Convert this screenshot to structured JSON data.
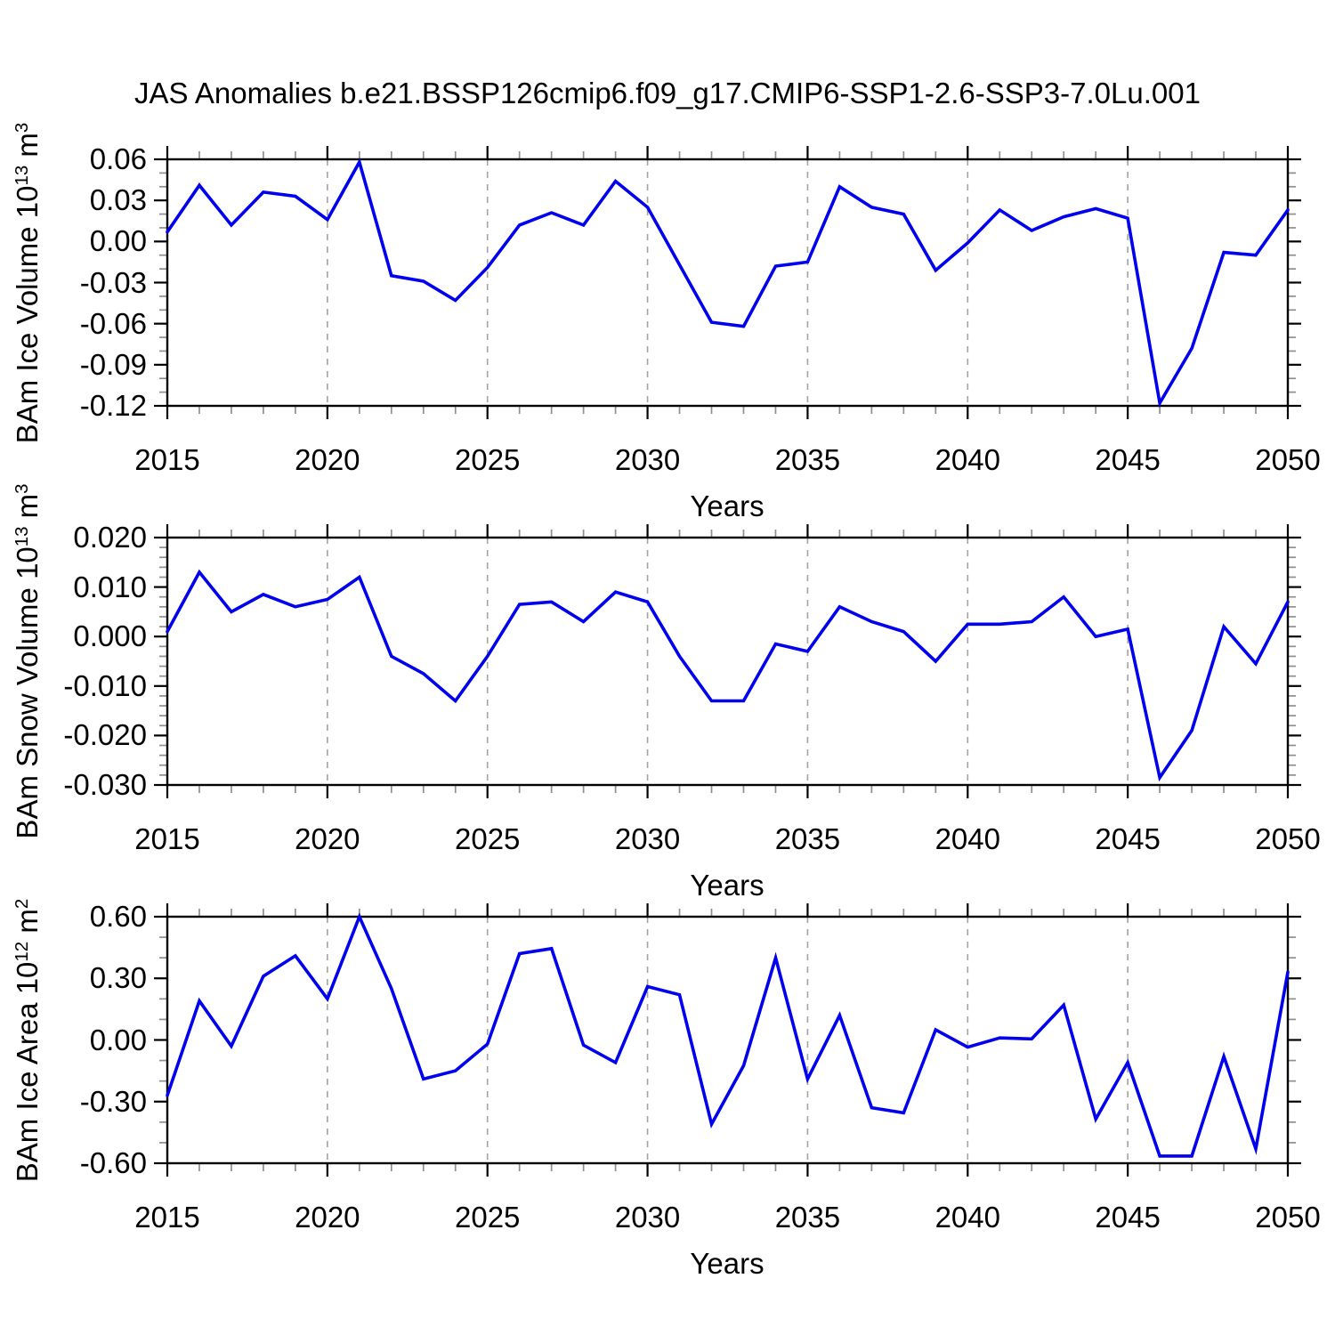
{
  "title": "JAS Anomalies b.e21.BSSP126cmip6.f09_g17.CMIP6-SSP1-2.6-SSP3-7.0Lu.001",
  "xlabel": "Years",
  "line_color": "#0000EE",
  "grid_color": "#A3A3A3",
  "frame_color": "#000000",
  "minor_tick_color": "#8F8F8F",
  "chart_data": [
    {
      "type": "line",
      "name": "ice-volume",
      "ylabel_text": "BAm Ice Volume 10^13 m^3",
      "ylabel_parts": [
        {
          "text": "BAm Ice Volume 10"
        },
        {
          "text": "13",
          "sup": true
        },
        {
          "text": " m"
        },
        {
          "text": "3",
          "sup": true
        }
      ],
      "xlabel": "Years",
      "x": [
        2015,
        2016,
        2017,
        2018,
        2019,
        2020,
        2021,
        2022,
        2023,
        2024,
        2025,
        2026,
        2027,
        2028,
        2029,
        2030,
        2031,
        2032,
        2033,
        2034,
        2035,
        2036,
        2037,
        2038,
        2039,
        2040,
        2041,
        2042,
        2043,
        2044,
        2045,
        2046,
        2047,
        2048,
        2049,
        2050
      ],
      "values": [
        0.007,
        0.041,
        0.012,
        0.036,
        0.033,
        0.016,
        0.058,
        -0.025,
        -0.029,
        -0.043,
        -0.019,
        0.012,
        0.021,
        0.012,
        0.044,
        0.025,
        -0.017,
        -0.059,
        -0.062,
        -0.018,
        -0.015,
        0.04,
        0.025,
        0.02,
        -0.021,
        -0.001,
        0.023,
        0.008,
        0.018,
        0.024,
        0.017,
        -0.118,
        -0.078,
        -0.008,
        -0.01,
        0.023
      ],
      "ylim": [
        -0.12,
        0.06
      ],
      "ytick_values": [
        0.06,
        0.03,
        0.0,
        -0.03,
        -0.06,
        -0.09,
        -0.12
      ],
      "ytick_labels": [
        "0.06",
        "0.03",
        "0.00",
        "-0.03",
        "-0.06",
        "-0.09",
        "-0.12"
      ],
      "y_minor_step": 0.01,
      "xlim": [
        2015,
        2050
      ],
      "x_major_ticks": [
        2015,
        2020,
        2025,
        2030,
        2035,
        2040,
        2045,
        2050
      ],
      "x_tick_labels": [
        "2015",
        "2020",
        "2025",
        "2030",
        "2035",
        "2040",
        "2045",
        "2050"
      ],
      "x_minor_step": 1,
      "grid_years": [
        2020,
        2025,
        2030,
        2035,
        2040,
        2045
      ],
      "grid_on": "vertical-dashed",
      "legend": "none"
    },
    {
      "type": "line",
      "name": "snow-volume",
      "ylabel_text": "BAm Snow Volume 10^13 m^3",
      "ylabel_parts": [
        {
          "text": "BAm Snow Volume 10"
        },
        {
          "text": "13",
          "sup": true
        },
        {
          "text": " m"
        },
        {
          "text": "3",
          "sup": true
        }
      ],
      "xlabel": "Years",
      "x": [
        2015,
        2016,
        2017,
        2018,
        2019,
        2020,
        2021,
        2022,
        2023,
        2024,
        2025,
        2026,
        2027,
        2028,
        2029,
        2030,
        2031,
        2032,
        2033,
        2034,
        2035,
        2036,
        2037,
        2038,
        2039,
        2040,
        2041,
        2042,
        2043,
        2044,
        2045,
        2046,
        2047,
        2048,
        2049,
        2050
      ],
      "values": [
        0.001,
        0.013,
        0.005,
        0.0085,
        0.006,
        0.0075,
        0.012,
        -0.004,
        -0.0075,
        -0.013,
        -0.004,
        0.0065,
        0.007,
        0.003,
        0.009,
        0.007,
        -0.004,
        -0.013,
        -0.013,
        -0.0015,
        -0.003,
        0.006,
        0.003,
        0.001,
        -0.005,
        0.0025,
        0.0025,
        0.003,
        0.008,
        0.0,
        0.0015,
        -0.0285,
        -0.019,
        0.002,
        -0.0055,
        0.007
      ],
      "ylim": [
        -0.03,
        0.02
      ],
      "ytick_values": [
        0.02,
        0.01,
        0.0,
        -0.01,
        -0.02,
        -0.03
      ],
      "ytick_labels": [
        "0.020",
        "0.010",
        "0.000",
        "-0.010",
        "-0.020",
        "-0.030"
      ],
      "y_minor_step": 0.002,
      "xlim": [
        2015,
        2050
      ],
      "x_major_ticks": [
        2015,
        2020,
        2025,
        2030,
        2035,
        2040,
        2045,
        2050
      ],
      "x_tick_labels": [
        "2015",
        "2020",
        "2025",
        "2030",
        "2035",
        "2040",
        "2045",
        "2050"
      ],
      "x_minor_step": 1,
      "grid_years": [
        2020,
        2025,
        2030,
        2035,
        2040,
        2045
      ],
      "grid_on": "vertical-dashed",
      "legend": "none"
    },
    {
      "type": "line",
      "name": "ice-area",
      "ylabel_text": "BAm Ice Area 10^12 m^2",
      "ylabel_parts": [
        {
          "text": "BAm Ice Area 10"
        },
        {
          "text": "12",
          "sup": true
        },
        {
          "text": " m"
        },
        {
          "text": "2",
          "sup": true
        }
      ],
      "xlabel": "Years",
      "x": [
        2015,
        2016,
        2017,
        2018,
        2019,
        2020,
        2021,
        2022,
        2023,
        2024,
        2025,
        2026,
        2027,
        2028,
        2029,
        2030,
        2031,
        2032,
        2033,
        2034,
        2035,
        2036,
        2037,
        2038,
        2039,
        2040,
        2041,
        2042,
        2043,
        2044,
        2045,
        2046,
        2047,
        2048,
        2049,
        2050
      ],
      "values": [
        -0.27,
        0.19,
        -0.03,
        0.31,
        0.41,
        0.2,
        0.6,
        0.25,
        -0.19,
        -0.15,
        -0.02,
        0.42,
        0.445,
        -0.025,
        -0.11,
        0.26,
        0.22,
        -0.41,
        -0.125,
        0.4,
        -0.19,
        0.12,
        -0.33,
        -0.355,
        0.05,
        -0.035,
        0.01,
        0.005,
        0.17,
        -0.385,
        -0.11,
        -0.565,
        -0.565,
        -0.08,
        -0.53,
        0.33
      ],
      "ylim": [
        -0.6,
        0.6
      ],
      "ytick_values": [
        0.6,
        0.3,
        0.0,
        -0.3,
        -0.6
      ],
      "ytick_labels": [
        "0.60",
        "0.30",
        "0.00",
        "-0.30",
        "-0.60"
      ],
      "y_minor_step": 0.1,
      "xlim": [
        2015,
        2050
      ],
      "x_major_ticks": [
        2015,
        2020,
        2025,
        2030,
        2035,
        2040,
        2045,
        2050
      ],
      "x_tick_labels": [
        "2015",
        "2020",
        "2025",
        "2030",
        "2035",
        "2040",
        "2045",
        "2050"
      ],
      "x_minor_step": 1,
      "grid_years": [
        2020,
        2025,
        2030,
        2035,
        2040,
        2045
      ],
      "grid_on": "vertical-dashed",
      "legend": "none"
    }
  ]
}
